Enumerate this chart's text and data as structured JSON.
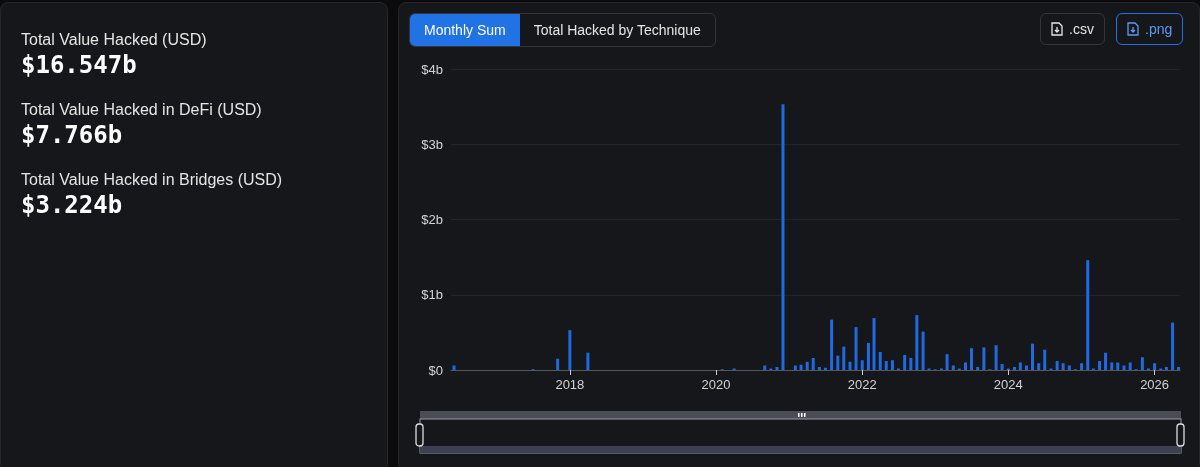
{
  "chart_data": [
    {
      "type": "other",
      "annotations": [
        "Total Value Hacked (USD)",
        "$16.547b",
        "Total Value Hacked in DeFi (USD)",
        "$7.766b",
        "Total Value Hacked in Bridges (USD)",
        "$3.224b"
      ]
    },
    {
      "type": "bar",
      "annotations": [
        "Monthly Sum",
        "Total Hacked by Technique",
        ".csv",
        ".png"
      ],
      "x": [
        "2016-06",
        "2017-07",
        "2017-11",
        "2018-01",
        "2018-04",
        "2020-02",
        "2020-04",
        "2020-09",
        "2020-10",
        "2020-11",
        "2020-12",
        "2021-02",
        "2021-03",
        "2021-04",
        "2021-05",
        "2021-06",
        "2021-07",
        "2021-08",
        "2021-09",
        "2021-10",
        "2021-11",
        "2021-12",
        "2022-01",
        "2022-02",
        "2022-03",
        "2022-04",
        "2022-05",
        "2022-06",
        "2022-07",
        "2022-08",
        "2022-09",
        "2022-10",
        "2022-11",
        "2022-12",
        "2023-01",
        "2023-02",
        "2023-03",
        "2023-04",
        "2023-05",
        "2023-06",
        "2023-07",
        "2023-08",
        "2023-09",
        "2023-10",
        "2023-11",
        "2023-12",
        "2024-01",
        "2024-02",
        "2024-03",
        "2024-04",
        "2024-05",
        "2024-06",
        "2024-07",
        "2024-08",
        "2024-09",
        "2024-10",
        "2024-11",
        "2024-12",
        "2025-01",
        "2025-02",
        "2025-03",
        "2025-04",
        "2025-05",
        "2025-06",
        "2025-07",
        "2025-08",
        "2025-09",
        "2025-10",
        "2025-11",
        "2025-12",
        "2026-01",
        "2026-02",
        "2026-03",
        "2026-04",
        "2026-05"
      ],
      "values": [
        0.06,
        0.01,
        0.15,
        0.53,
        0.23,
        0.01,
        0.02,
        0.06,
        0.02,
        0.04,
        3.53,
        0.06,
        0.07,
        0.11,
        0.16,
        0.04,
        0.03,
        0.67,
        0.19,
        0.31,
        0.11,
        0.57,
        0.13,
        0.36,
        0.69,
        0.24,
        0.12,
        0.13,
        0.02,
        0.2,
        0.16,
        0.73,
        0.51,
        0.02,
        0.01,
        0.02,
        0.21,
        0.06,
        0.02,
        0.1,
        0.29,
        0.04,
        0.3,
        0.01,
        0.33,
        0.08,
        0.02,
        0.04,
        0.1,
        0.06,
        0.35,
        0.09,
        0.27,
        0.02,
        0.12,
        0.09,
        0.06,
        0.01,
        0.09,
        1.46,
        0.02,
        0.12,
        0.23,
        0.1,
        0.1,
        0.06,
        0.1,
        0.01,
        0.17,
        0.02,
        0.09,
        0.02,
        0.04,
        0.63,
        0.04
      ],
      "color": "#1f6ae0",
      "xlim": [
        "2016-05-17",
        "2026-05-08"
      ],
      "xticks": [
        "2018",
        "2020",
        "2022",
        "2024",
        "2026"
      ],
      "ylim": [
        0,
        4
      ],
      "yticks": [
        {
          "value": 0,
          "label": "$0"
        },
        {
          "value": 1,
          "label": "$1b"
        },
        {
          "value": 2,
          "label": "$2b"
        },
        {
          "value": 3,
          "label": "$3b"
        },
        {
          "value": 4,
          "label": "$4b"
        }
      ],
      "grid": "y"
    }
  ]
}
